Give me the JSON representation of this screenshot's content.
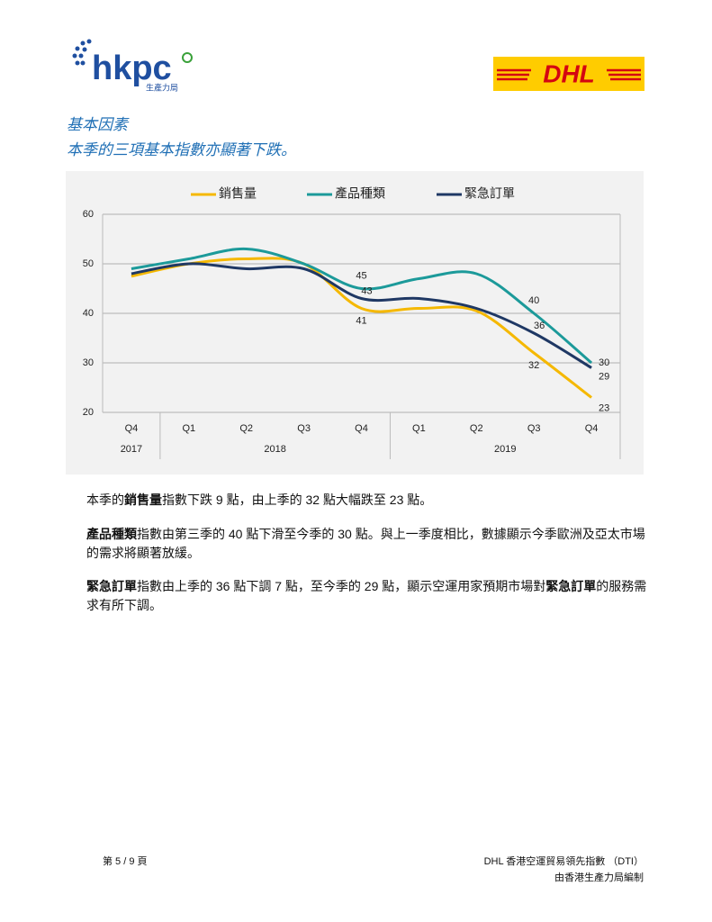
{
  "header": {
    "logo_text": "hkpc",
    "logo_subtitle": "生產力局",
    "dhl": "DHL"
  },
  "headings": [
    "基本因素",
    "本季的三項基本指數亦顯著下跌。"
  ],
  "chart_data": {
    "type": "line",
    "categories": [
      "Q4",
      "Q1",
      "Q2",
      "Q3",
      "Q4",
      "Q1",
      "Q2",
      "Q3",
      "Q4"
    ],
    "year_groups": [
      {
        "name": "2017",
        "count": 1
      },
      {
        "name": "2018",
        "count": 4
      },
      {
        "name": "2019",
        "count": 4
      }
    ],
    "series": [
      {
        "name": "銷售量",
        "color": "#f5b800",
        "values": [
          47.5,
          50,
          51,
          50,
          41,
          41,
          40.5,
          32,
          23
        ]
      },
      {
        "name": "產品種類",
        "color": "#1c9a9a",
        "values": [
          49,
          51,
          53,
          50,
          45,
          47,
          48,
          40,
          30
        ]
      },
      {
        "name": "緊急訂單",
        "color": "#1f3864",
        "values": [
          48,
          50,
          49,
          49,
          43,
          43,
          41,
          36,
          29
        ]
      }
    ],
    "data_label_indices": [
      4,
      7,
      8
    ],
    "ylim": [
      20,
      60
    ],
    "yticks": [
      20,
      30,
      40,
      50,
      60
    ],
    "grid": true,
    "legend": "top"
  },
  "body": [
    [
      {
        "text": "本季的",
        "bold": false
      },
      {
        "text": "銷售量",
        "bold": true
      },
      {
        "text": "指數下跌 9 點，由上季的 32 點大幅跌至 23 點。",
        "bold": false
      }
    ],
    [
      {
        "text": "產品種類",
        "bold": true
      },
      {
        "text": "指數由第三季的 40 點下滑至今季的 30 點。與上一季度相比，數據顯示今季歐洲及亞太市場的需求將顯著放緩。",
        "bold": false
      }
    ],
    [
      {
        "text": "緊急訂單",
        "bold": true
      },
      {
        "text": "指數由上季的 36 點下調 7 點，至今季的 29 點，顯示空運用家預期市場對",
        "bold": false
      },
      {
        "text": "緊急訂單",
        "bold": true
      },
      {
        "text": "的服務需求有所下調。",
        "bold": false
      }
    ]
  ],
  "footer": {
    "page": "第 5 / 9 頁",
    "title": "DHL 香港空運貿易領先指數 （DTI）",
    "credit": "由香港生產力局編制"
  }
}
